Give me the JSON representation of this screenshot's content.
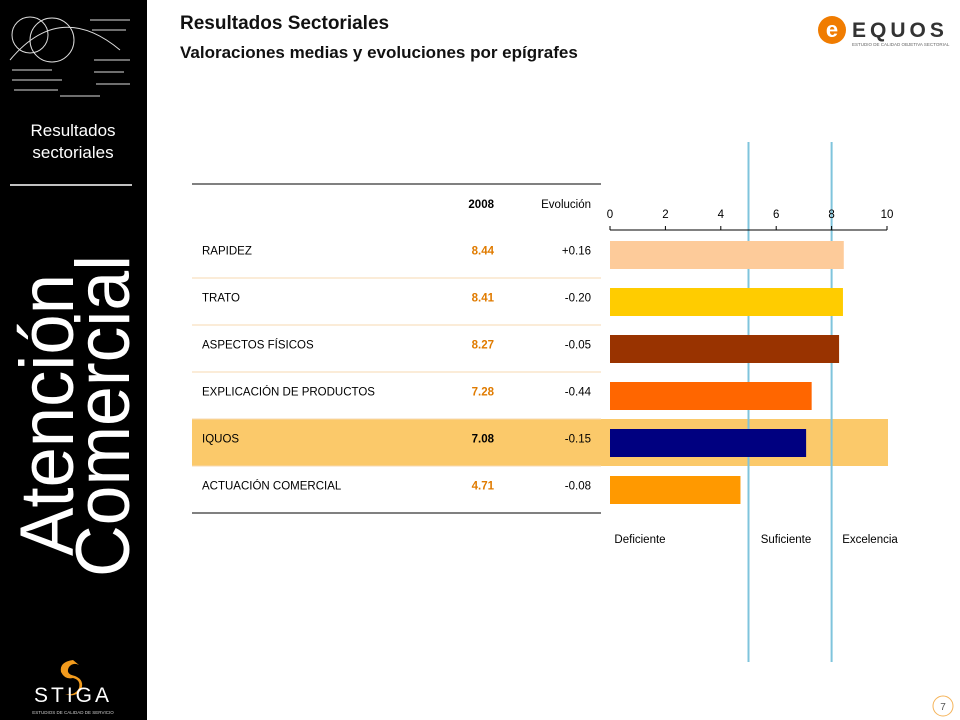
{
  "sidebar": {
    "section": "Resultados sectoriales",
    "vertical_title": [
      "Atención",
      "Comercial"
    ],
    "logo": "STIGA",
    "logo_tagline": "ESTUDIOS DE CALIDAD DE SERVICIO"
  },
  "header": {
    "title": "Resultados Sectoriales",
    "subtitle": "Valoraciones medias y evoluciones por epígrafes",
    "brand": "EQUOS",
    "brand_tagline": "ESTUDIO DE CALIDAD OBJETIVA SECTORIAL"
  },
  "table": {
    "columns": [
      "2008",
      "Evolución"
    ],
    "evolution": [
      "+0.16",
      "-0.20",
      "-0.05",
      "-0.44",
      "-0.15",
      "-0.08"
    ]
  },
  "chart_data": {
    "type": "bar",
    "orientation": "horizontal",
    "categories": [
      "RAPIDEZ",
      "TRATO",
      "ASPECTOS FÍSICOS",
      "EXPLICACIÓN  DE PRODUCTOS",
      "IQUOS",
      "ACTUACIÓN  COMERCIAL"
    ],
    "values": [
      8.44,
      8.41,
      8.27,
      7.28,
      7.08,
      4.71
    ],
    "colors": [
      "#fdcb9a",
      "#ffcc00",
      "#993300",
      "#ff6600",
      "#000080",
      "#ff9900"
    ],
    "highlight_index": 4,
    "highlight_color": "#fbc96a",
    "xlim": [
      0,
      10
    ],
    "xticks": [
      0,
      2,
      4,
      6,
      8,
      10
    ],
    "reference_lines": [
      5,
      8
    ],
    "reference_color": "#7fc4dc",
    "zone_labels": [
      "Deficiente",
      "Suficiente",
      "Excelencia"
    ]
  },
  "page_number": "7"
}
